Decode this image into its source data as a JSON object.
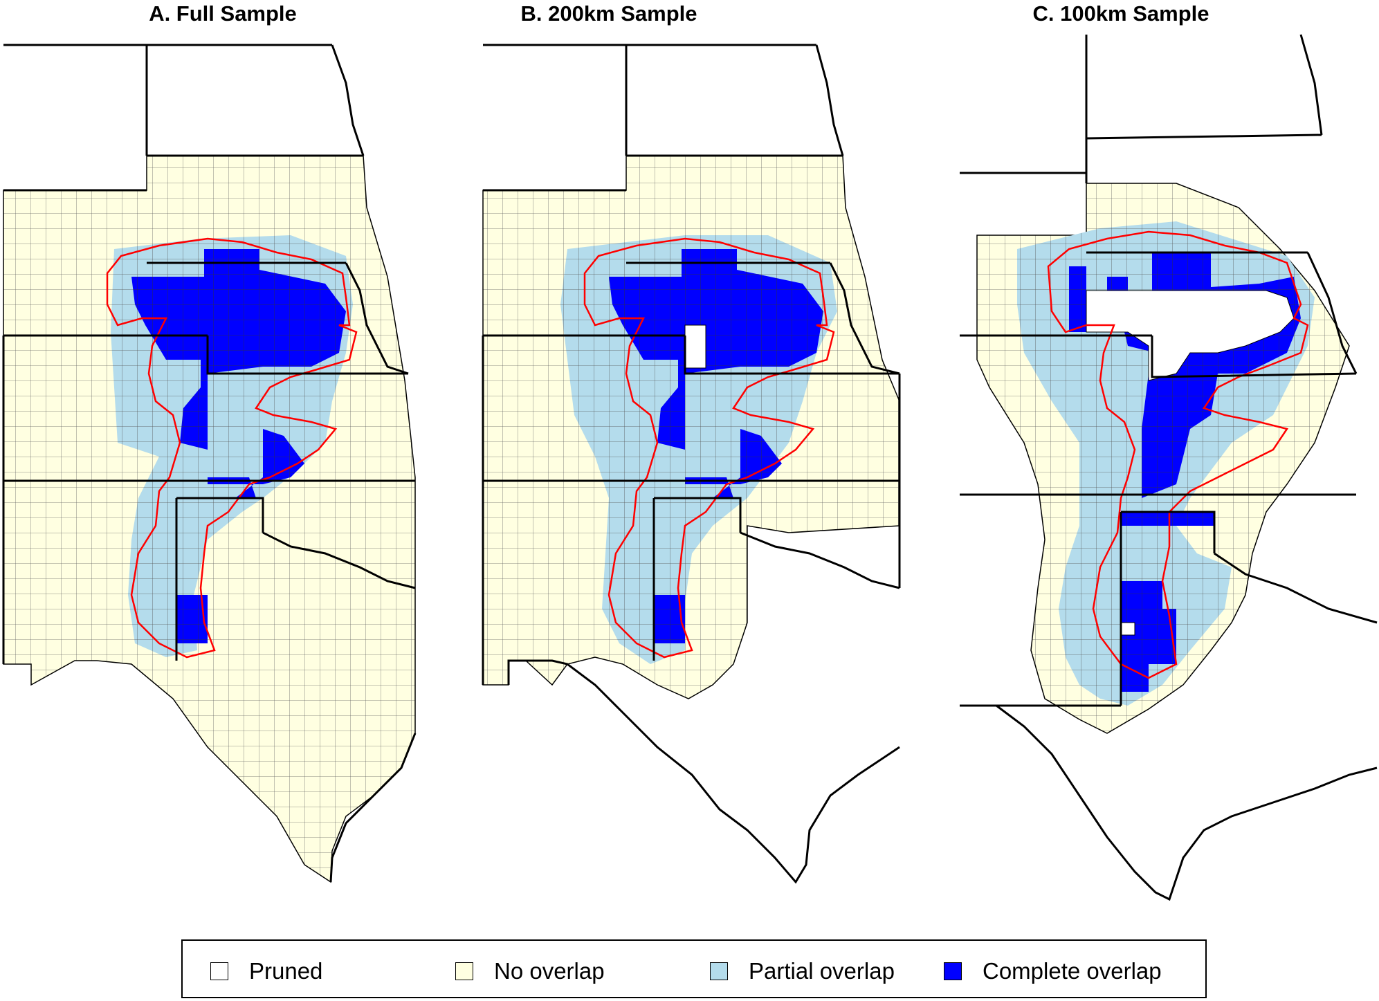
{
  "panels": [
    {
      "title": "A. Full Sample"
    },
    {
      "title": "B. 200km Sample"
    },
    {
      "title": "C. 100km Sample"
    }
  ],
  "legend": {
    "items": [
      {
        "label": "Pruned",
        "color": "#ffffff"
      },
      {
        "label": "No overlap",
        "color": "#ffffe1"
      },
      {
        "label": "Partial overlap",
        "color": "#b4dcec"
      },
      {
        "label": "Complete overlap",
        "color": "#0000ff"
      }
    ]
  },
  "colors": {
    "pruned": "#ffffff",
    "no_overlap": "#ffffe1",
    "partial_overlap": "#b4dcec",
    "complete_overlap": "#0000ff",
    "aquifer_outline": "#ff0000",
    "state_border": "#000000"
  }
}
